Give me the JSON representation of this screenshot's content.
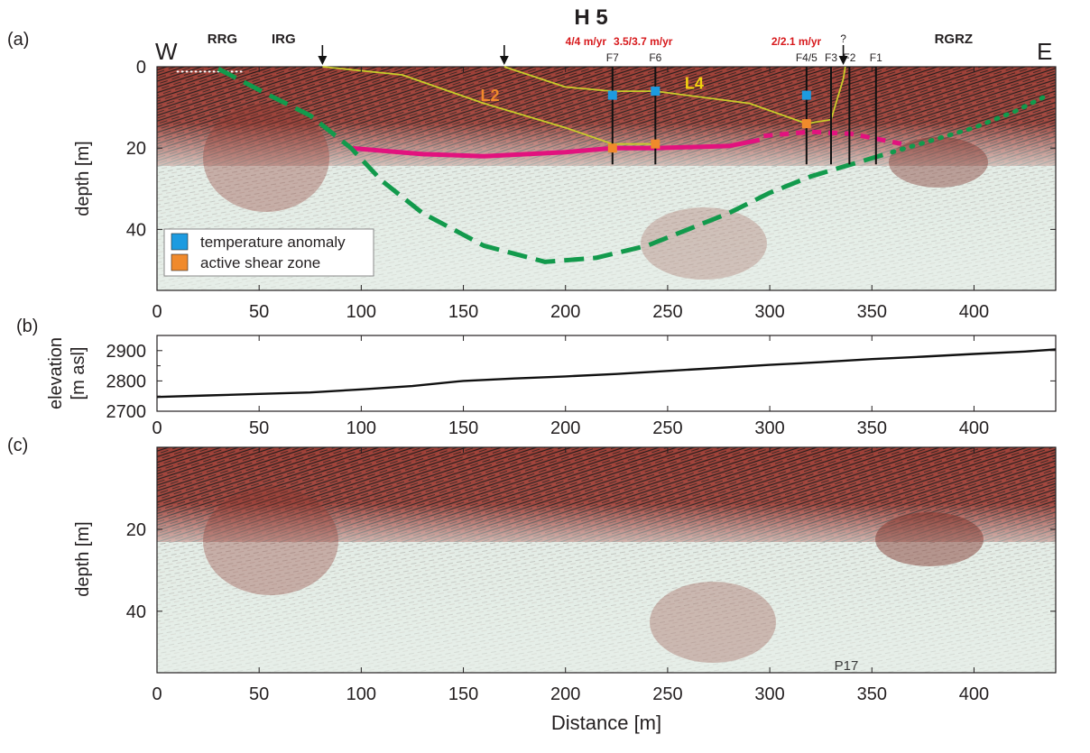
{
  "figure": {
    "title": "H 5",
    "xlabel": "Distance [m]"
  },
  "chart_data": [
    {
      "panel": "(a)",
      "type": "heatmap",
      "description_label": "GPR radargram with interpretation",
      "ylabel": "depth [m]",
      "xlim": [
        0,
        440
      ],
      "ylim": [
        55,
        0
      ],
      "xticks": [
        0,
        50,
        100,
        150,
        200,
        250,
        300,
        350,
        400
      ],
      "yticks": [
        0,
        20,
        40
      ],
      "west_label": "W",
      "east_label": "E",
      "zone_labels": [
        {
          "text": "RRG",
          "x": 32
        },
        {
          "text": "IRG",
          "x": 62
        },
        {
          "text": "RGRZ",
          "x": 390
        }
      ],
      "arrows_x": [
        81,
        170,
        336
      ],
      "question_mark": {
        "text": "?",
        "x": 336
      },
      "velocity_labels": [
        {
          "text": "4/4 m/yr",
          "x": 210
        },
        {
          "text": "3.5/3.7 m/yr",
          "x": 238
        },
        {
          "text": "2/2.1 m/yr",
          "x": 313
        }
      ],
      "boreholes": [
        {
          "name": "F7",
          "x": 223,
          "bottom": 24
        },
        {
          "name": "F6",
          "x": 244,
          "bottom": 24
        },
        {
          "name": "F4/5",
          "x": 318,
          "bottom": 24
        },
        {
          "name": "F3",
          "x": 330,
          "bottom": 24
        },
        {
          "name": "F2",
          "x": 339,
          "bottom": 24
        },
        {
          "name": "F1",
          "x": 352,
          "bottom": 24
        }
      ],
      "layer_labels": [
        {
          "text": "L2",
          "x": 163,
          "y": 6,
          "color": "#f08a2c"
        },
        {
          "text": "L4",
          "x": 263,
          "y": 3,
          "color": "#f2d20f"
        }
      ],
      "interpretation_lines": [
        {
          "label": "L4 boundary",
          "color": "#c8cc2a",
          "style": "solid",
          "points": [
            [
              170,
              0
            ],
            [
              200,
              5
            ],
            [
              223,
              6
            ],
            [
              244,
              6
            ],
            [
              290,
              9
            ],
            [
              318,
              14
            ],
            [
              330,
              13
            ],
            [
              336,
              3
            ],
            [
              337,
              0
            ]
          ]
        },
        {
          "label": "L2 boundary",
          "color": "#c8cc2a",
          "style": "solid",
          "points": [
            [
              81,
              0
            ],
            [
              120,
              2
            ],
            [
              160,
              9
            ],
            [
              200,
              15
            ],
            [
              223,
              19
            ],
            [
              244,
              19
            ]
          ]
        },
        {
          "label": "surface",
          "color": "#ffffff",
          "style": "dotted",
          "points": [
            [
              10,
              1.2
            ],
            [
              42,
              1.2
            ]
          ]
        },
        {
          "label": "shear horizon",
          "color": "#e2127e",
          "style": "solid",
          "points": [
            [
              95,
              20
            ],
            [
              130,
              21.5
            ],
            [
              160,
              22
            ],
            [
              200,
              21
            ],
            [
              223,
              20
            ],
            [
              244,
              20
            ],
            [
              280,
              19.5
            ],
            [
              295,
              18
            ]
          ]
        },
        {
          "label": "shear horizon (dashed)",
          "color": "#e2127e",
          "style": "dashed",
          "points": [
            [
              297,
              17
            ],
            [
              320,
              16
            ],
            [
              340,
              16.5
            ],
            [
              365,
              19
            ]
          ]
        },
        {
          "label": "bedrock dashed",
          "color": "#129a4c",
          "style": "dashed",
          "points": [
            [
              30,
              0.5
            ],
            [
              55,
              7
            ],
            [
              75,
              12
            ],
            [
              95,
              20
            ],
            [
              110,
              28
            ],
            [
              130,
              36
            ],
            [
              160,
              44
            ],
            [
              190,
              48
            ],
            [
              215,
              47
            ],
            [
              240,
              44
            ],
            [
              260,
              40
            ],
            [
              280,
              36
            ],
            [
              300,
              31
            ],
            [
              320,
              27
            ],
            [
              340,
              24
            ],
            [
              360,
              21
            ]
          ]
        },
        {
          "label": "bedrock dotted",
          "color": "#129a4c",
          "style": "dotted",
          "points": [
            [
              360,
              21
            ],
            [
              380,
              18
            ],
            [
              400,
              15
            ],
            [
              420,
              11
            ],
            [
              436,
              7
            ]
          ]
        }
      ],
      "markers": [
        {
          "type": "temperature anomaly",
          "x": 223,
          "y": 7
        },
        {
          "type": "temperature anomaly",
          "x": 244,
          "y": 6
        },
        {
          "type": "temperature anomaly",
          "x": 318,
          "y": 7
        },
        {
          "type": "active shear zone",
          "x": 223,
          "y": 20
        },
        {
          "type": "active shear zone",
          "x": 244,
          "y": 19
        },
        {
          "type": "active shear zone",
          "x": 318,
          "y": 14
        }
      ],
      "legend": {
        "placement": "bottom-left",
        "entries": [
          {
            "label": "temperature anomaly",
            "color": "#1d9be0"
          },
          {
            "label": "active shear zone",
            "color": "#f08a2c"
          }
        ]
      }
    },
    {
      "panel": "(b)",
      "type": "line",
      "ylabel": "elevation",
      "ylabel2": "[m asl]",
      "xlim": [
        0,
        440
      ],
      "ylim": [
        2700,
        2950
      ],
      "xticks": [
        0,
        50,
        100,
        150,
        200,
        250,
        300,
        350,
        400
      ],
      "yticks": [
        2700,
        2800,
        2900
      ],
      "series": [
        {
          "x": [
            0,
            25,
            50,
            75,
            100,
            125,
            150,
            175,
            200,
            225,
            250,
            275,
            300,
            325,
            350,
            375,
            400,
            425,
            440
          ],
          "y": [
            2747,
            2752,
            2757,
            2762,
            2772,
            2783,
            2800,
            2808,
            2815,
            2823,
            2833,
            2843,
            2853,
            2862,
            2872,
            2880,
            2889,
            2897,
            2904
          ]
        }
      ]
    },
    {
      "panel": "(c)",
      "type": "heatmap",
      "description_label": "GPR radargram, uninterpreted",
      "ylabel": "depth [m]",
      "xlim": [
        0,
        440
      ],
      "ylim": [
        55,
        0
      ],
      "xticks": [
        0,
        50,
        100,
        150,
        200,
        250,
        300,
        350,
        400
      ],
      "yticks": [
        20,
        40
      ],
      "annotation": {
        "text": "P17",
        "x": 338,
        "y": 54
      }
    }
  ],
  "colors": {
    "radar_dark": "#6b2520",
    "radar_red": "#b8473c",
    "radar_light": "#d9e4dd",
    "radar_line": "#1a1515"
  }
}
